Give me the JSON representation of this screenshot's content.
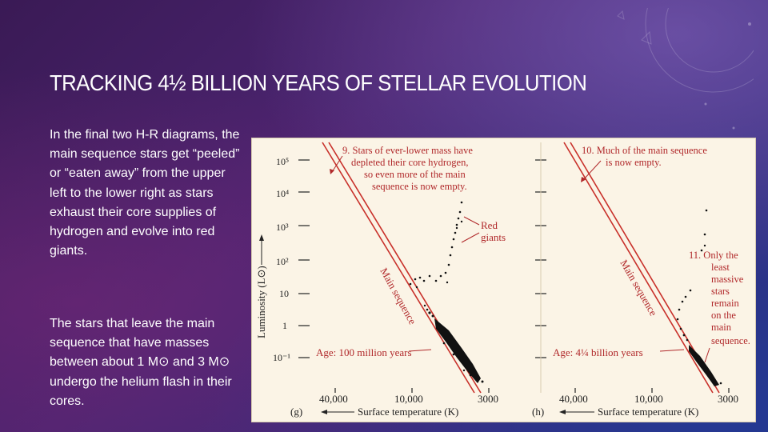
{
  "slide": {
    "title": "TRACKING 4½ BILLION YEARS OF STELLAR EVOLUTION",
    "paragraphs": [
      "In the final two H-R diagrams, the main sequence stars get “peeled” or “eaten away” from the upper left to the lower right as stars exhaust their core supplies of hydrogen and evolve into red giants.",
      "The stars that leave the main sequence that have masses between about 1 M⊙ and 3 M⊙ undergo the helium flash in their cores."
    ]
  },
  "figure": {
    "y_axis_label": "Luminosity (L⊙)",
    "y_ticks": [
      "10⁵",
      "10⁴",
      "10³",
      "10²",
      "10",
      "1",
      "10⁻¹"
    ],
    "x_axis_label": "Surface temperature (K)",
    "x_ticks": [
      "40,000",
      "10,000",
      "3000"
    ],
    "main_sequence_label": "Main sequence",
    "panels": [
      {
        "panel_label": "(g)",
        "age": "Age: 100 million years",
        "notes": [
          {
            "number": "9.",
            "lines": [
              "9. Stars of ever-lower mass have",
              "depleted their core hydrogen,",
              "so even more of the main",
              "sequence is now empty."
            ]
          },
          {
            "number": "",
            "lines": [
              "Red",
              "giants"
            ]
          }
        ]
      },
      {
        "panel_label": "(h)",
        "age": "Age: 4¼ billion years",
        "notes": [
          {
            "number": "10.",
            "lines": [
              "10. Much of the main sequence",
              "is now empty."
            ]
          },
          {
            "number": "11.",
            "lines": [
              "11. Only the",
              "least",
              "massive",
              "stars",
              "remain",
              "on the",
              "main",
              "sequence."
            ]
          }
        ]
      }
    ],
    "colors": {
      "main_sequence_line": "#c8302a",
      "annotation_text": "#b0282a",
      "star_dots": "#111111",
      "figure_bg": "#fbf4e6"
    }
  }
}
